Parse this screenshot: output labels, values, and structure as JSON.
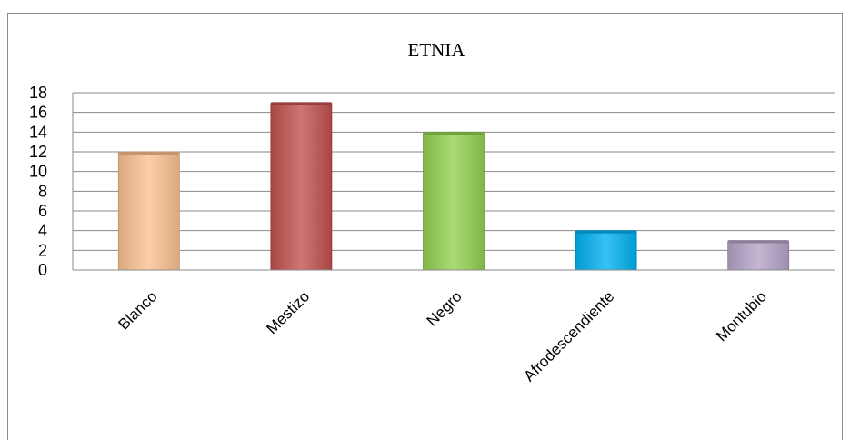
{
  "chart_data": {
    "type": "bar",
    "title": "ETNIA",
    "xlabel": "",
    "ylabel": "",
    "categories": [
      "Blanco",
      "Mestizo",
      "Negro",
      "Afrodescendiente",
      "Montubio"
    ],
    "values": [
      12,
      17,
      14,
      4,
      3
    ],
    "colors": [
      "#fac090",
      "#c0504d",
      "#92d050",
      "#00b0f0",
      "#b3a2c7"
    ],
    "ylim": [
      0,
      18
    ],
    "yticks": [
      0,
      2,
      4,
      6,
      8,
      10,
      12,
      14,
      16,
      18
    ],
    "grid": true,
    "legend": "none"
  }
}
